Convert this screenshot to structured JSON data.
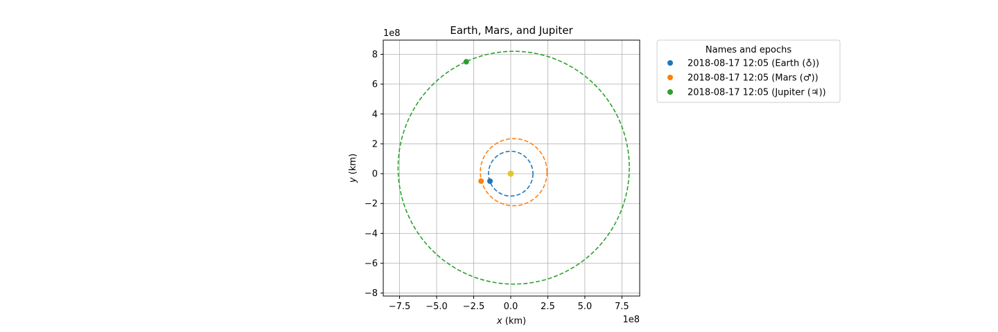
{
  "chart_data": {
    "type": "scatter",
    "title": "Earth, Mars, and Jupiter",
    "xlabel_var": "x",
    "xlabel_unit": " (km)",
    "ylabel_var": "y",
    "ylabel_unit": " (km)",
    "x_offset_label": "1e8",
    "y_offset_label": "1e8",
    "xlim": [
      -0.86,
      0.87
    ],
    "ylim": [
      -0.82,
      0.895
    ],
    "x_ticks": [
      -0.75,
      -0.5,
      -0.25,
      0.0,
      0.25,
      0.5,
      0.75
    ],
    "x_tick_labels": [
      "−7.5",
      "−5.0",
      "−2.5",
      "0.0",
      "2.5",
      "5.0",
      "7.5"
    ],
    "y_ticks": [
      -0.8,
      -0.6,
      -0.4,
      -0.2,
      0.0,
      0.2,
      0.4,
      0.6,
      0.8
    ],
    "y_tick_labels": [
      "−8",
      "−6",
      "−4",
      "−2",
      "0",
      "2",
      "4",
      "6",
      "8"
    ],
    "grid": true,
    "aspect": "equal",
    "legend": {
      "title": "Names and epochs",
      "placement": "outside upper right"
    },
    "sun": {
      "x": 0.0,
      "y": 0.0,
      "color": "#e5c62a"
    },
    "series": [
      {
        "name": "2018-08-17 12:05 (Earth (♁))",
        "color": "#1f77b4",
        "orbit": {
          "cx": 0.0,
          "cy": 0.0,
          "rx": 0.15,
          "ry": 0.15
        },
        "position": {
          "x": -0.14,
          "y": -0.05
        }
      },
      {
        "name": "2018-08-17 12:05 (Mars (♂))",
        "color": "#ff7f0e",
        "orbit": {
          "cx": 0.02,
          "cy": 0.01,
          "rx": 0.225,
          "ry": 0.225
        },
        "position": {
          "x": -0.2,
          "y": -0.05
        }
      },
      {
        "name": "2018-08-17 12:05 (Jupiter (♃))",
        "color": "#2ca02c",
        "orbit": {
          "cx": 0.02,
          "cy": 0.04,
          "rx": 0.78,
          "ry": 0.78
        },
        "position": {
          "x": -0.3,
          "y": 0.75
        }
      }
    ]
  }
}
